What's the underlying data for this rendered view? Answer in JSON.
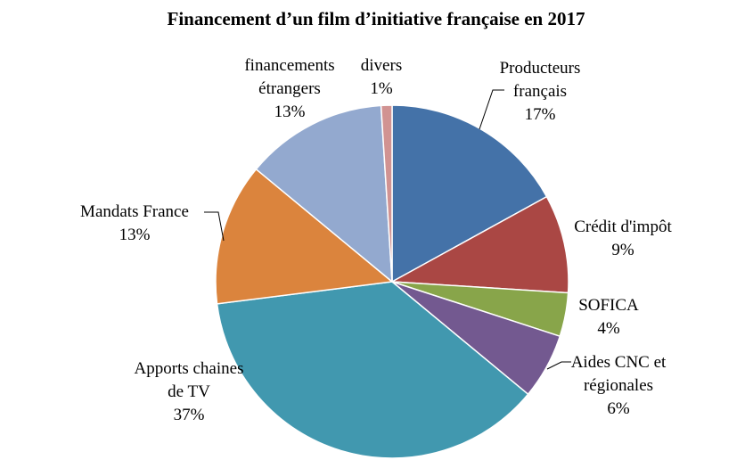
{
  "chart_data": {
    "type": "pie",
    "title": "Financement d’un film d’initiative française en 2017",
    "slices": [
      {
        "lines": [
          "Producteurs",
          "français"
        ],
        "pct_label": "17%",
        "value": 17,
        "color": "#4472a8"
      },
      {
        "lines": [
          "Crédit d'impôt"
        ],
        "pct_label": "9%",
        "value": 9,
        "color": "#aa4744"
      },
      {
        "lines": [
          "SOFICA"
        ],
        "pct_label": "4%",
        "value": 4,
        "color": "#88a54a"
      },
      {
        "lines": [
          "Aides CNC et",
          "régionales"
        ],
        "pct_label": "6%",
        "value": 6,
        "color": "#735990"
      },
      {
        "lines": [
          "Apports chaines",
          "de TV"
        ],
        "pct_label": "37%",
        "value": 37,
        "color": "#4198af"
      },
      {
        "lines": [
          "Mandats France"
        ],
        "pct_label": "13%",
        "value": 13,
        "color": "#db843d"
      },
      {
        "lines": [
          "financements",
          "étrangers"
        ],
        "pct_label": "13%",
        "value": 13,
        "color": "#93a9cf"
      },
      {
        "lines": [
          "divers"
        ],
        "pct_label": "1%",
        "value": 1,
        "color": "#d19392"
      }
    ],
    "start_angle_deg": 0,
    "direction": "clockwise"
  }
}
